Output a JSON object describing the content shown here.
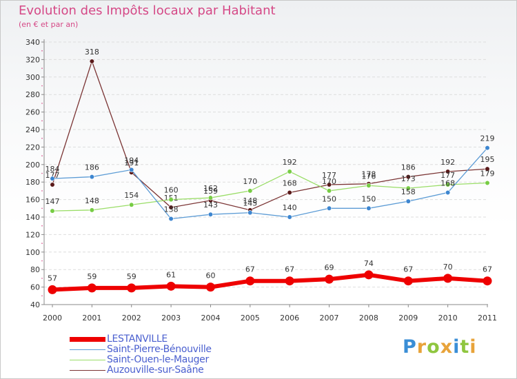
{
  "title": "Evolution des Impôts locaux par Habitant",
  "subtitle": "(en € et par an)",
  "logo": {
    "letters": [
      "P",
      "r",
      "o",
      "x",
      "i",
      "t",
      "i"
    ],
    "colors": [
      "#3a8ed6",
      "#e8a33a",
      "#8fc63f",
      "#e8a33a",
      "#3a8ed6",
      "#8fc63f",
      "#e8a33a"
    ]
  },
  "chart_data": {
    "type": "line",
    "title": "Evolution des Impôts locaux par Habitant",
    "ylabel": "(en € et par an)",
    "ylim": [
      40,
      340
    ],
    "yticks": [
      40,
      60,
      80,
      100,
      120,
      140,
      160,
      180,
      200,
      220,
      240,
      260,
      280,
      300,
      320,
      340
    ],
    "categories": [
      "2000",
      "2001",
      "2002",
      "2003",
      "2004",
      "2005",
      "2006",
      "2007",
      "2008",
      "2009",
      "2010",
      "2011"
    ],
    "series": [
      {
        "name": "LESTANVILLE",
        "color": "#ee0000",
        "bold": true,
        "values": [
          57,
          59,
          59,
          61,
          60,
          67,
          67,
          69,
          74,
          67,
          70,
          67
        ],
        "labels": [
          "57",
          "59",
          "59",
          "61",
          "60",
          "67",
          "67",
          "69",
          "74",
          "67",
          "70",
          "67"
        ]
      },
      {
        "name": "Saint-Pierre-Bénouville",
        "color": "#5b9bd5",
        "marker": "#3d86d0",
        "values": [
          184,
          186,
          194,
          138,
          143,
          145,
          140,
          150,
          150,
          158,
          168,
          219
        ],
        "labels": [
          "184",
          "186",
          "194",
          "138",
          "143",
          "145",
          "140",
          "150",
          "150",
          "158",
          "168",
          "219"
        ]
      },
      {
        "name": "Saint-Ouen-le-Mauger",
        "color": "#99dd66",
        "marker": "#77cc44",
        "values": [
          147,
          148,
          154,
          160,
          162,
          170,
          192,
          170,
          176,
          173,
          177,
          179
        ],
        "labels": [
          "147",
          "148",
          "154",
          "160",
          "162",
          "170",
          "192",
          "170",
          "176",
          "173",
          "177",
          "179"
        ]
      },
      {
        "name": "Auzouville-sur-Saâne",
        "color": "#7a3333",
        "marker": "#5a1a1a",
        "values": [
          177,
          318,
          191,
          151,
          159,
          148,
          168,
          177,
          178,
          186,
          192,
          195
        ],
        "labels": [
          "177",
          "318",
          "191",
          "151",
          "159",
          "148",
          "168",
          "177",
          "178",
          "186",
          "192",
          "195"
        ]
      }
    ]
  }
}
